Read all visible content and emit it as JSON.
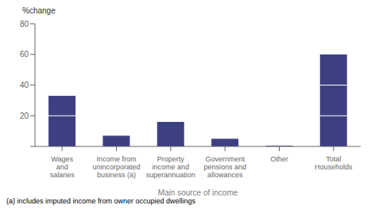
{
  "chart_data": {
    "type": "bar",
    "categories": [
      "Wages\nand\nsalaries",
      "Income from\nunincorporated\nbusiness (a)",
      "Property\nincome and\nsuperannuation",
      "Government\npensions and\nallowances",
      "Other",
      "Total\nHouseholds"
    ],
    "values": [
      33,
      7,
      16,
      5,
      0.5,
      60
    ],
    "segment_lines": [
      [
        20
      ],
      [],
      [],
      [],
      [],
      [
        20,
        40
      ]
    ],
    "color": "#3d4080",
    "ylabel": "%change",
    "xlabel": "Main source of income",
    "footnote": "(a) includes imputed income from owner occupied dwellings",
    "ylim": [
      0,
      80
    ],
    "yticks": [
      {
        "value": 0,
        "label": ""
      },
      20,
      40,
      60,
      80
    ],
    "grid": false
  }
}
